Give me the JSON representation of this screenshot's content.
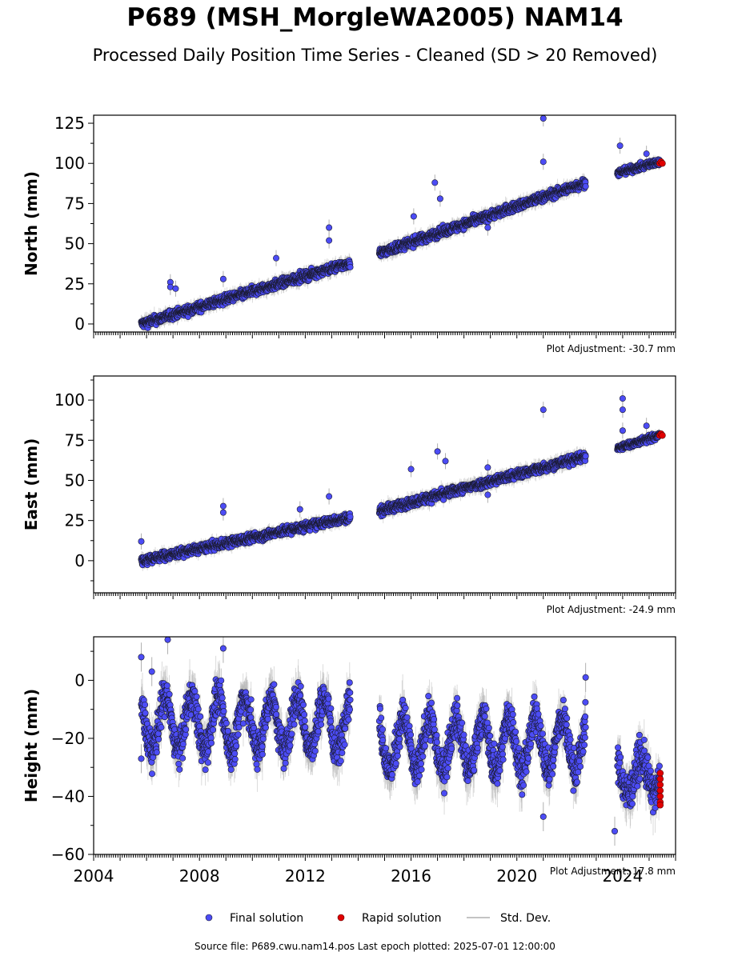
{
  "header": {
    "title": "P689 (MSH_MorgleWA2005) NAM14",
    "subtitle": "Processed Daily Position Time Series - Cleaned (SD > 20 Removed)"
  },
  "footer": {
    "source": "Source file: P689.cwu.nam14.pos  Last epoch plotted: 2025-07-01 12:00:00"
  },
  "colors": {
    "final": "#4c4cf5",
    "rapid": "#e00000",
    "stddev": "#b0b0b0",
    "marker_edge": "#1a1a2e"
  },
  "chart_data": {
    "type": "scatter",
    "x_ticks": [
      "2004",
      "2008",
      "2012",
      "2016",
      "2020",
      "2024"
    ],
    "xlim": [
      2004.0,
      2026.0
    ],
    "legend": {
      "placement": "bottom-center",
      "entries": [
        "Final solution",
        "Rapid solution",
        "Std. Dev."
      ]
    },
    "panels": [
      {
        "ylabel": "North (mm)",
        "ylim": [
          -5,
          130
        ],
        "yticks": [
          0,
          25,
          50,
          75,
          100,
          125
        ],
        "adjustment": "Plot Adjustment: -30.7 mm",
        "series": [
          {
            "name": "Final solution",
            "segments": [
              {
                "x": [
                  2005.8,
                  2013.7
                ],
                "y": [
                  0,
                  38
                ],
                "noise": 2.0,
                "spread": 3.5
              },
              {
                "x": [
                  2014.8,
                  2022.6
                ],
                "y": [
                  44,
                  88
                ],
                "noise": 2.0,
                "spread": 3.5
              },
              {
                "x": [
                  2023.8,
                  2025.4
                ],
                "y": [
                  94,
                  101
                ],
                "noise": 1.5,
                "spread": 2.5
              }
            ],
            "outliers": [
              [
                2006.9,
                26
              ],
              [
                2006.9,
                23
              ],
              [
                2007.1,
                22
              ],
              [
                2008.9,
                28
              ],
              [
                2010.9,
                41
              ],
              [
                2012.9,
                60
              ],
              [
                2012.9,
                52
              ],
              [
                2016.9,
                88
              ],
              [
                2017.1,
                78
              ],
              [
                2016.1,
                67
              ],
              [
                2018.9,
                60
              ],
              [
                2021.0,
                128
              ],
              [
                2021.0,
                101
              ],
              [
                2023.9,
                111
              ],
              [
                2024.9,
                106
              ]
            ]
          },
          {
            "name": "Rapid solution",
            "points": [
              [
                2025.4,
                100
              ],
              [
                2025.45,
                101
              ],
              [
                2025.5,
                100
              ]
            ]
          }
        ]
      },
      {
        "ylabel": "East (mm)",
        "ylim": [
          -20,
          115
        ],
        "yticks": [
          0,
          25,
          50,
          75,
          100
        ],
        "adjustment": "Plot Adjustment: -24.9 mm",
        "series": [
          {
            "name": "Final solution",
            "segments": [
              {
                "x": [
                  2005.8,
                  2013.7
                ],
                "y": [
                  0,
                  27
                ],
                "noise": 2.0,
                "spread": 3.0
              },
              {
                "x": [
                  2014.8,
                  2022.6
                ],
                "y": [
                  31,
                  65
                ],
                "noise": 2.0,
                "spread": 3.5
              },
              {
                "x": [
                  2023.8,
                  2025.4
                ],
                "y": [
                  70,
                  78
                ],
                "noise": 1.5,
                "spread": 2.5
              }
            ],
            "outliers": [
              [
                2005.8,
                12
              ],
              [
                2008.9,
                34
              ],
              [
                2008.9,
                30
              ],
              [
                2011.8,
                32
              ],
              [
                2012.9,
                40
              ],
              [
                2016.0,
                57
              ],
              [
                2017.0,
                68
              ],
              [
                2017.3,
                62
              ],
              [
                2018.9,
                58
              ],
              [
                2018.9,
                41
              ],
              [
                2021.0,
                94
              ],
              [
                2024.0,
                101
              ],
              [
                2024.0,
                94
              ],
              [
                2024.0,
                81
              ],
              [
                2024.9,
                84
              ]
            ]
          },
          {
            "name": "Rapid solution",
            "points": [
              [
                2025.4,
                78
              ],
              [
                2025.45,
                79
              ],
              [
                2025.5,
                78
              ]
            ]
          }
        ]
      },
      {
        "ylabel": "Height (mm)",
        "ylim": [
          -60,
          15
        ],
        "yticks": [
          0,
          -20,
          -40,
          -60
        ],
        "adjustment": "Plot Adjustment: 17.8 mm",
        "series": [
          {
            "name": "Final solution",
            "segments": [
              {
                "x": [
                  2005.8,
                  2013.7
                ],
                "mean": -15,
                "amp": 9,
                "noise": 4.5,
                "spread": 6
              },
              {
                "x": [
                  2014.8,
                  2022.6
                ],
                "mean": -22,
                "amp": 9,
                "noise": 4.5,
                "spread": 6
              },
              {
                "x": [
                  2023.8,
                  2025.4
                ],
                "mean": -33,
                "amp": 6,
                "noise": 4.5,
                "spread": 6
              }
            ],
            "outliers": [
              [
                2005.8,
                8
              ],
              [
                2005.8,
                -27
              ],
              [
                2006.2,
                3
              ],
              [
                2006.8,
                14
              ],
              [
                2008.9,
                11
              ],
              [
                2021.0,
                -47
              ],
              [
                2022.6,
                1
              ],
              [
                2023.7,
                -52
              ]
            ]
          },
          {
            "name": "Rapid solution",
            "points": [
              [
                2025.42,
                -32
              ],
              [
                2025.42,
                -34
              ],
              [
                2025.42,
                -36
              ],
              [
                2025.42,
                -38
              ],
              [
                2025.42,
                -40
              ],
              [
                2025.42,
                -42
              ],
              [
                2025.42,
                -43
              ]
            ]
          }
        ]
      }
    ]
  }
}
